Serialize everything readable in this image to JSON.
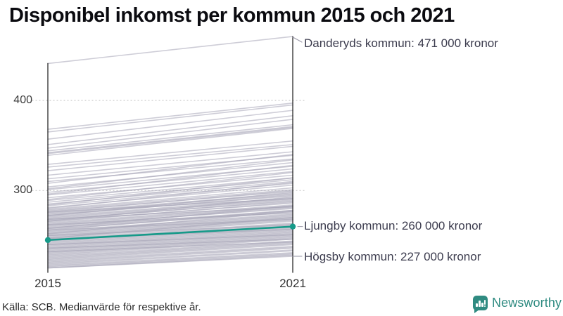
{
  "title": "Disponibel inkomst per kommun 2015 och 2021",
  "axis": {
    "x_labels": [
      "2015",
      "2021"
    ],
    "y_ticks": [
      "400",
      "300"
    ]
  },
  "annotations": [
    {
      "id": "danderyd",
      "label": "Danderyds kommun: 471 000 kronor"
    },
    {
      "id": "ljungby",
      "label": "Ljungby kommun: 260 000 kronor"
    },
    {
      "id": "hogsby",
      "label": "Högsby kommun: 227 000 kronor"
    }
  ],
  "footer": {
    "source": "Källa: SCB. Medianvärde för respektive år."
  },
  "branding": {
    "name": "Newsworthy"
  },
  "colors": {
    "highlight": "#169a89",
    "line_gray": "rgba(166,164,183,0.55)",
    "axis": "#1a1a1a",
    "grid": "#cbcbcb",
    "leader": "#9a98a8",
    "brand": "#2f8b81",
    "annotation_text": "#3c3c4e"
  },
  "chart_data": {
    "type": "line",
    "variant": "slopegraph",
    "title": "Disponibel inkomst per kommun 2015 och 2021",
    "x": [
      2015,
      2021
    ],
    "unit": "tusen kronor (1000 SEK)",
    "ylim": [
      205,
      485
    ],
    "y_gridlines": [
      400,
      300
    ],
    "grid": "dotted",
    "highlight": {
      "name": "Ljungby kommun",
      "values": [
        245,
        260
      ],
      "label": "Ljungby kommun: 260 000 kronor"
    },
    "labeled": [
      {
        "name": "Danderyds kommun",
        "values": [
          441,
          471
        ],
        "label": "Danderyds kommun: 471 000 kronor"
      },
      {
        "name": "Högsby kommun",
        "values": [
          214,
          227
        ],
        "label": "Högsby kommun: 227 000 kronor"
      }
    ],
    "lines": [
      [
        441,
        471
      ],
      [
        368,
        397
      ],
      [
        365,
        395
      ],
      [
        357,
        389
      ],
      [
        351,
        383
      ],
      [
        347,
        379
      ],
      [
        344,
        373
      ],
      [
        342,
        371
      ],
      [
        341,
        370
      ],
      [
        339,
        369
      ],
      [
        329,
        355
      ],
      [
        326,
        351
      ],
      [
        322,
        349
      ],
      [
        317,
        343
      ],
      [
        313,
        339
      ],
      [
        310,
        335
      ],
      [
        304,
        331
      ],
      [
        301,
        327
      ],
      [
        298,
        324
      ],
      [
        295,
        321
      ],
      [
        292,
        317
      ],
      [
        289,
        314
      ],
      [
        287,
        312
      ],
      [
        285,
        310
      ],
      [
        283,
        308
      ],
      [
        281,
        306
      ],
      [
        280,
        309
      ],
      [
        279,
        303
      ],
      [
        278,
        301
      ],
      [
        277,
        299
      ],
      [
        276,
        300
      ],
      [
        275,
        297
      ],
      [
        274,
        296
      ],
      [
        273,
        294
      ],
      [
        272,
        295
      ],
      [
        271,
        292
      ],
      [
        270,
        291
      ],
      [
        269,
        290
      ],
      [
        268,
        288
      ],
      [
        267,
        289
      ],
      [
        266,
        286
      ],
      [
        265,
        287
      ],
      [
        264,
        284
      ],
      [
        263,
        283
      ],
      [
        262,
        282
      ],
      [
        261,
        280
      ],
      [
        260,
        281
      ],
      [
        259,
        278
      ],
      [
        258,
        277
      ],
      [
        257,
        276
      ],
      [
        256,
        278
      ],
      [
        255,
        274
      ],
      [
        254,
        273
      ],
      [
        253,
        272
      ],
      [
        252,
        271
      ],
      [
        251,
        270
      ],
      [
        250,
        269
      ],
      [
        249,
        268
      ],
      [
        248,
        267
      ],
      [
        247,
        266
      ],
      [
        246,
        264
      ],
      [
        245,
        263
      ],
      [
        244,
        262
      ],
      [
        243,
        261
      ],
      [
        242,
        260
      ],
      [
        241,
        259
      ],
      [
        240,
        258
      ],
      [
        239,
        257
      ],
      [
        238,
        256
      ],
      [
        237,
        255
      ],
      [
        236,
        254
      ],
      [
        235,
        253
      ],
      [
        234,
        252
      ],
      [
        233,
        251
      ],
      [
        232,
        250
      ],
      [
        231,
        249
      ],
      [
        230,
        248
      ],
      [
        229,
        247
      ],
      [
        228,
        246
      ],
      [
        227,
        244
      ],
      [
        226,
        243
      ],
      [
        225,
        242
      ],
      [
        224,
        241
      ],
      [
        223,
        240
      ],
      [
        222,
        238
      ],
      [
        221,
        237
      ],
      [
        220,
        236
      ],
      [
        219,
        234
      ],
      [
        218,
        233
      ],
      [
        217,
        231
      ],
      [
        216,
        230
      ],
      [
        215,
        229
      ],
      [
        214,
        228
      ],
      [
        214,
        227
      ],
      [
        276,
        291
      ],
      [
        268,
        282
      ],
      [
        262,
        275
      ],
      [
        256,
        268
      ],
      [
        250,
        262
      ],
      [
        246,
        257
      ],
      [
        240,
        251
      ],
      [
        236,
        246
      ],
      [
        232,
        243
      ],
      [
        252,
        277
      ],
      [
        247,
        270
      ],
      [
        258,
        283
      ],
      [
        266,
        293
      ],
      [
        272,
        298
      ],
      [
        284,
        314
      ],
      [
        290,
        320
      ],
      [
        296,
        328
      ],
      [
        302,
        334
      ],
      [
        308,
        340
      ]
    ]
  }
}
